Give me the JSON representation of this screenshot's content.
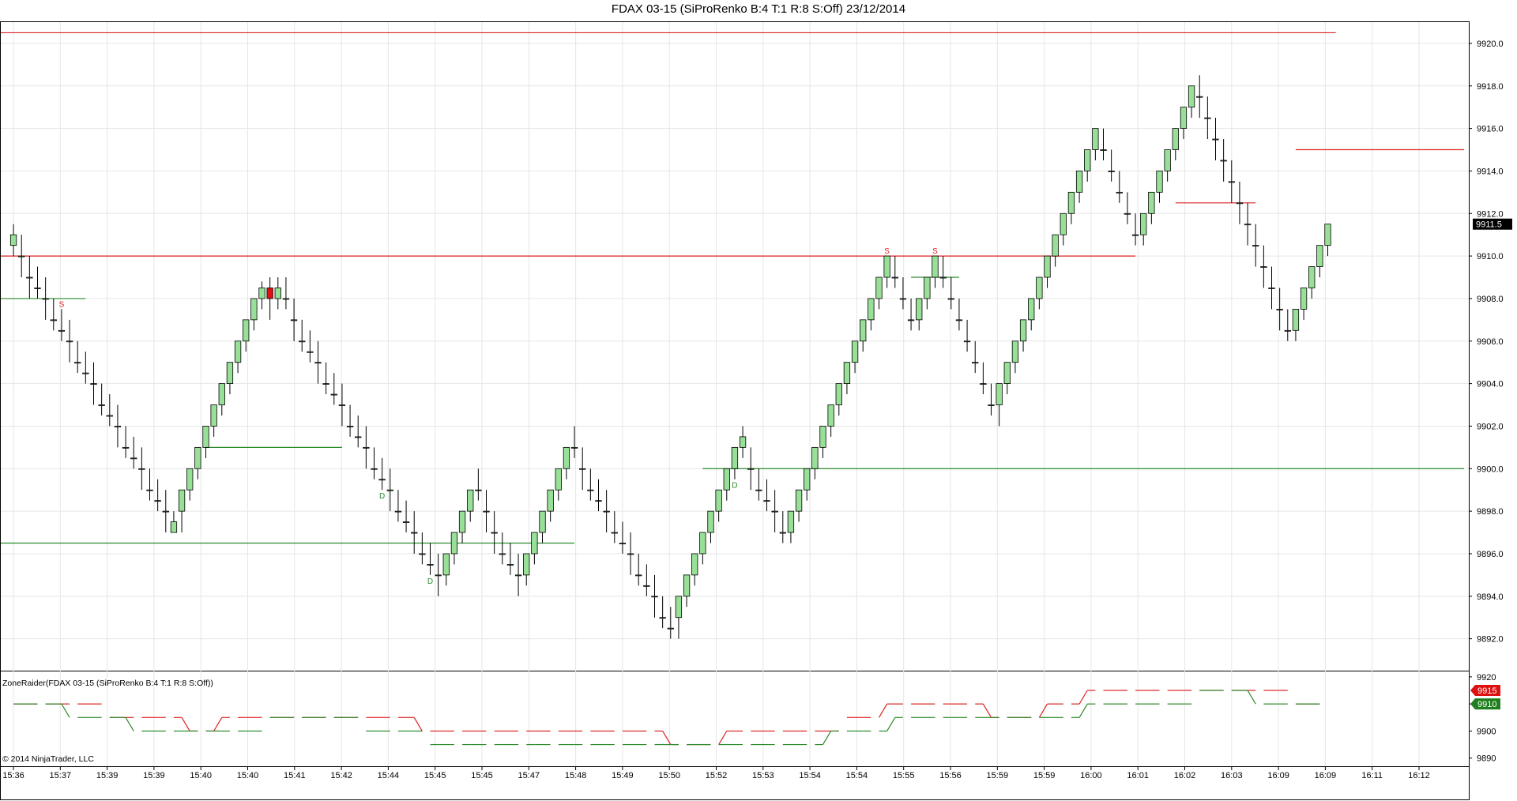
{
  "title": "FDAX 03-15 (SiProRenko B:4 T:1 R:8 S:Off)  23/12/2014",
  "indicator_label": "ZoneRaider(FDAX 03-15 (SiProRenko B:4 T:1 R:8 S:Off))",
  "copyright": "© 2014 NinjaTrader, LLC",
  "colors": {
    "up_fill": "#98e098",
    "down_fill": "#dd1111",
    "candle_outline": "#000000",
    "resistance_line": "#dd2222",
    "support_line": "#2a8a2a",
    "grid": "#e6e6e6",
    "price_marker_bg": "#000000",
    "upper_marker_bg": "#dd1111",
    "lower_marker_bg": "#1f7f1f"
  },
  "chart_data": [
    {
      "type": "candlestick",
      "name": "price",
      "y_ticks": [
        "9892.0",
        "9894.0",
        "9896.0",
        "9898.0",
        "9900.0",
        "9902.0",
        "9904.0",
        "9906.0",
        "9908.0",
        "9910.0",
        "9912.0",
        "9914.0",
        "9916.0",
        "9918.0",
        "9920.0"
      ],
      "ylim": [
        9890.5,
        9921.0
      ],
      "last_price": "9911.5",
      "x_labels": [
        "15:36",
        "15:37",
        "15:39",
        "15:39",
        "15:40",
        "15:40",
        "15:41",
        "15:42",
        "15:44",
        "15:45",
        "15:45",
        "15:47",
        "15:48",
        "15:49",
        "15:50",
        "15:52",
        "15:53",
        "15:54",
        "15:54",
        "15:55",
        "15:56",
        "15:59",
        "15:59",
        "16:00",
        "16:01",
        "16:02",
        "16:03",
        "16:09",
        "16:09",
        "16:11",
        "16:12"
      ],
      "bar_count": 182,
      "bricks": [
        [
          9910.5,
          9911.5,
          9910,
          9911
        ],
        [
          9910,
          9911,
          9909,
          9910
        ],
        [
          9909,
          9910,
          9908,
          9909
        ],
        [
          9908.5,
          9909.5,
          9908,
          9908.5
        ],
        [
          9908,
          9909,
          9907,
          9908
        ],
        [
          9907,
          9908,
          9906.5,
          9907
        ],
        [
          9906.5,
          9907.5,
          9906,
          9906.5
        ],
        [
          9906,
          9907,
          9905,
          9906
        ],
        [
          9905,
          9906,
          9904.5,
          9905
        ],
        [
          9904.5,
          9905.5,
          9904,
          9904.5
        ],
        [
          9904,
          9905,
          9903,
          9904
        ],
        [
          9903,
          9904,
          9902.5,
          9903
        ],
        [
          9902.5,
          9903.5,
          9902,
          9902.5
        ],
        [
          9902,
          9903,
          9901,
          9902
        ],
        [
          9901,
          9902,
          9900.5,
          9901
        ],
        [
          9900.5,
          9901.5,
          9900,
          9900.5
        ],
        [
          9900,
          9901,
          9899,
          9900
        ],
        [
          9899,
          9900,
          9898.5,
          9899
        ],
        [
          9898.5,
          9899.5,
          9898,
          9898.5
        ],
        [
          9898,
          9899,
          9897,
          9898
        ],
        [
          9897,
          9898,
          9897,
          9897.5
        ],
        [
          9898,
          9899,
          9897,
          9899
        ],
        [
          9899,
          9900,
          9898.5,
          9900
        ],
        [
          9900,
          9901,
          9899.5,
          9901
        ],
        [
          9901,
          9902,
          9900.5,
          9902
        ],
        [
          9902,
          9903,
          9901.5,
          9903
        ],
        [
          9903,
          9904,
          9902.5,
          9904
        ],
        [
          9904,
          9905,
          9903.5,
          9905
        ],
        [
          9905,
          9906,
          9904.5,
          9906
        ],
        [
          9906,
          9907,
          9905.5,
          9907
        ],
        [
          9907,
          9908,
          9906.5,
          9908
        ],
        [
          9908,
          9908.8,
          9907.5,
          9908.5
        ],
        [
          9908.5,
          9909,
          9907,
          9908
        ],
        [
          9908,
          9909,
          9907.5,
          9908.5
        ],
        [
          9908,
          9909,
          9907.5,
          9908
        ],
        [
          9907,
          9908,
          9906,
          9907
        ],
        [
          9906,
          9907,
          9905.5,
          9906
        ],
        [
          9905.5,
          9906.5,
          9905,
          9905.5
        ],
        [
          9905,
          9906,
          9904,
          9905
        ],
        [
          9904,
          9905,
          9903.5,
          9904
        ],
        [
          9903.5,
          9904.5,
          9903,
          9903.5
        ],
        [
          9903,
          9904,
          9902,
          9903
        ],
        [
          9902,
          9903,
          9901.5,
          9902
        ],
        [
          9901.5,
          9902.5,
          9901,
          9901.5
        ],
        [
          9901,
          9902,
          9900,
          9901
        ],
        [
          9900,
          9901,
          9899.5,
          9900
        ],
        [
          9899.5,
          9900.5,
          9899,
          9899.5
        ],
        [
          9899,
          9900,
          9898,
          9899
        ],
        [
          9898,
          9899,
          9897.5,
          9898
        ],
        [
          9897.5,
          9898.5,
          9897,
          9897.5
        ],
        [
          9897,
          9898,
          9896,
          9897
        ],
        [
          9896,
          9897,
          9895.5,
          9896
        ],
        [
          9895.5,
          9896.5,
          9895,
          9895.5
        ],
        [
          9895,
          9896,
          9894,
          9895
        ],
        [
          9895,
          9896,
          9894.5,
          9896
        ],
        [
          9896,
          9897,
          9895.5,
          9897
        ],
        [
          9897,
          9898,
          9896.5,
          9898
        ],
        [
          9898,
          9899,
          9897.5,
          9899
        ],
        [
          9899,
          9900,
          9898.5,
          9899
        ],
        [
          9898,
          9899,
          9897,
          9898
        ],
        [
          9897,
          9898,
          9896,
          9897
        ],
        [
          9896,
          9897,
          9895.5,
          9896
        ],
        [
          9895.5,
          9896.5,
          9895,
          9895.5
        ],
        [
          9895,
          9896,
          9894,
          9895
        ],
        [
          9895,
          9896,
          9894.5,
          9896
        ],
        [
          9896,
          9897,
          9895.5,
          9897
        ],
        [
          9897,
          9898,
          9896.5,
          9898
        ],
        [
          9898,
          9899,
          9897.5,
          9899
        ],
        [
          9899,
          9900,
          9898.5,
          9900
        ],
        [
          9900,
          9901,
          9899.5,
          9901
        ],
        [
          9901,
          9902,
          9900.5,
          9901
        ],
        [
          9900,
          9901,
          9899,
          9900
        ],
        [
          9899,
          9900,
          9898.5,
          9899
        ],
        [
          9898.5,
          9899.5,
          9898,
          9898.5
        ],
        [
          9898,
          9899,
          9897,
          9898
        ],
        [
          9897,
          9898,
          9896.5,
          9897
        ],
        [
          9896.5,
          9897.5,
          9896,
          9896.5
        ],
        [
          9896,
          9897,
          9895,
          9896
        ],
        [
          9895,
          9896,
          9894.5,
          9895
        ],
        [
          9894.5,
          9895.5,
          9894,
          9894.5
        ],
        [
          9894,
          9895,
          9893,
          9894
        ],
        [
          9893,
          9894,
          9892.5,
          9893
        ],
        [
          9892.5,
          9893.5,
          9892,
          9892.5
        ],
        [
          9893,
          9894,
          9892,
          9894
        ],
        [
          9894,
          9895,
          9893.5,
          9895
        ],
        [
          9895,
          9896,
          9894.5,
          9896
        ],
        [
          9896,
          9897,
          9895.5,
          9897
        ],
        [
          9897,
          9898,
          9896.5,
          9898
        ],
        [
          9898,
          9899,
          9897.5,
          9899
        ],
        [
          9899,
          9900,
          9898.5,
          9900
        ],
        [
          9900,
          9901,
          9899.5,
          9901
        ],
        [
          9901,
          9902,
          9900.5,
          9901.5
        ],
        [
          9900,
          9901,
          9899,
          9900
        ],
        [
          9899,
          9900,
          9898.5,
          9899
        ],
        [
          9898.5,
          9899.5,
          9898,
          9898.5
        ],
        [
          9898,
          9899,
          9897,
          9898
        ],
        [
          9897,
          9898,
          9896.5,
          9897
        ],
        [
          9897,
          9898,
          9896.5,
          9898
        ],
        [
          9898,
          9899,
          9897.5,
          9899
        ],
        [
          9899,
          9900,
          9898.5,
          9900
        ],
        [
          9900,
          9901,
          9899.5,
          9901
        ],
        [
          9901,
          9902,
          9900.5,
          9902
        ],
        [
          9902,
          9903,
          9901.5,
          9903
        ],
        [
          9903,
          9904,
          9902.5,
          9904
        ],
        [
          9904,
          9905,
          9903.5,
          9905
        ],
        [
          9905,
          9906,
          9904.5,
          9906
        ],
        [
          9906,
          9907,
          9905.5,
          9907
        ],
        [
          9907,
          9908,
          9906.5,
          9908
        ],
        [
          9908,
          9909,
          9907.5,
          9909
        ],
        [
          9909,
          9910,
          9908.5,
          9910
        ],
        [
          9909,
          9910,
          9908.5,
          9909
        ],
        [
          9908,
          9909,
          9907.5,
          9908
        ],
        [
          9907,
          9908,
          9906.5,
          9907
        ],
        [
          9907,
          9908,
          9906.5,
          9908
        ],
        [
          9908,
          9909,
          9907.5,
          9909
        ],
        [
          9909,
          9910,
          9908.5,
          9910
        ],
        [
          9909,
          9910,
          9908.5,
          9909
        ],
        [
          9908,
          9909,
          9907.5,
          9908
        ],
        [
          9907,
          9908,
          9906.5,
          9907
        ],
        [
          9906,
          9907,
          9905.5,
          9906
        ],
        [
          9905,
          9906,
          9904.5,
          9905
        ],
        [
          9904,
          9905,
          9903.5,
          9904
        ],
        [
          9903,
          9904,
          9902.5,
          9903
        ],
        [
          9903,
          9904,
          9902,
          9904
        ],
        [
          9904,
          9905,
          9903.5,
          9905
        ],
        [
          9905,
          9906,
          9904.5,
          9906
        ],
        [
          9906,
          9907,
          9905.5,
          9907
        ],
        [
          9907,
          9908,
          9906.5,
          9908
        ],
        [
          9908,
          9909,
          9907.5,
          9909
        ],
        [
          9909,
          9910,
          9908.5,
          9910
        ],
        [
          9910,
          9911,
          9909.5,
          9911
        ],
        [
          9911,
          9912,
          9910.5,
          9912
        ],
        [
          9912,
          9913,
          9911.5,
          9913
        ],
        [
          9913,
          9914,
          9912.5,
          9914
        ],
        [
          9914,
          9915,
          9913.5,
          9915
        ],
        [
          9915,
          9916,
          9914.5,
          9916
        ],
        [
          9915,
          9916,
          9914.5,
          9915
        ],
        [
          9914,
          9915,
          9913.5,
          9914
        ],
        [
          9913,
          9914,
          9912.5,
          9913
        ],
        [
          9912,
          9913,
          9911.5,
          9912
        ],
        [
          9911,
          9912,
          9910.5,
          9911
        ],
        [
          9911,
          9912,
          9910.5,
          9912
        ],
        [
          9912,
          9913,
          9911.5,
          9913
        ],
        [
          9913,
          9914,
          9912.5,
          9914
        ],
        [
          9914,
          9915,
          9913.5,
          9915
        ],
        [
          9915,
          9916,
          9914.5,
          9916
        ],
        [
          9916,
          9917,
          9915.5,
          9917
        ],
        [
          9917,
          9918,
          9916.5,
          9918
        ],
        [
          9917.5,
          9918.5,
          9916.5,
          9917.5
        ],
        [
          9916.5,
          9917.5,
          9915.5,
          9916.5
        ],
        [
          9915.5,
          9916.5,
          9914.5,
          9915.5
        ],
        [
          9914.5,
          9915.5,
          9913.5,
          9914.5
        ],
        [
          9913.5,
          9914.5,
          9912.5,
          9913.5
        ],
        [
          9912.5,
          9913.5,
          9911.5,
          9912.5
        ],
        [
          9911.5,
          9912.5,
          9910.5,
          9911.5
        ],
        [
          9910.5,
          9911.5,
          9909.5,
          9910.5
        ],
        [
          9909.5,
          9910.5,
          9908.5,
          9909.5
        ],
        [
          9908.5,
          9909.5,
          9907.5,
          9908.5
        ],
        [
          9907.5,
          9908.5,
          9906.5,
          9907.5
        ],
        [
          9906.5,
          9907.5,
          9906,
          9906.5
        ],
        [
          9906.5,
          9907.5,
          9906,
          9907.5
        ],
        [
          9907.5,
          9908.5,
          9907,
          9908.5
        ],
        [
          9908.5,
          9909.5,
          9908,
          9909.5
        ],
        [
          9909.5,
          9910.5,
          9909,
          9910.5
        ],
        [
          9910.5,
          9911.5,
          9910,
          9911.5
        ]
      ],
      "horizontal_lines": [
        {
          "kind": "resistance",
          "price": 9920.5,
          "from": 0,
          "to": 165
        },
        {
          "kind": "resistance",
          "price": 9910.0,
          "from": 0,
          "to": 140
        },
        {
          "kind": "resistance",
          "price": 9915.0,
          "from": 160,
          "to": 181
        },
        {
          "kind": "resistance",
          "price": 9912.5,
          "from": 145,
          "to": 155
        },
        {
          "kind": "support",
          "price": 9908.0,
          "from": 0,
          "to": 9
        },
        {
          "kind": "support",
          "price": 9901.0,
          "from": 24,
          "to": 41
        },
        {
          "kind": "support",
          "price": 9896.5,
          "from": 0,
          "to": 70
        },
        {
          "kind": "support",
          "price": 9900.0,
          "from": 86,
          "to": 182
        },
        {
          "kind": "support",
          "price": 9909.0,
          "from": 112,
          "to": 118
        }
      ],
      "signals": [
        {
          "label": "S",
          "bar": 6
        },
        {
          "label": "S",
          "bar": 109
        },
        {
          "label": "S",
          "bar": 115
        },
        {
          "label": "D",
          "bar": 46
        },
        {
          "label": "D",
          "bar": 52
        },
        {
          "label": "D",
          "bar": 90
        }
      ]
    },
    {
      "type": "line",
      "name": "ZoneRaider",
      "y_ticks": [
        "9890",
        "9900",
        "9910",
        "9920"
      ],
      "ylim": [
        9887,
        9922
      ],
      "upper_marker": "9915",
      "lower_marker": "9910"
    }
  ]
}
